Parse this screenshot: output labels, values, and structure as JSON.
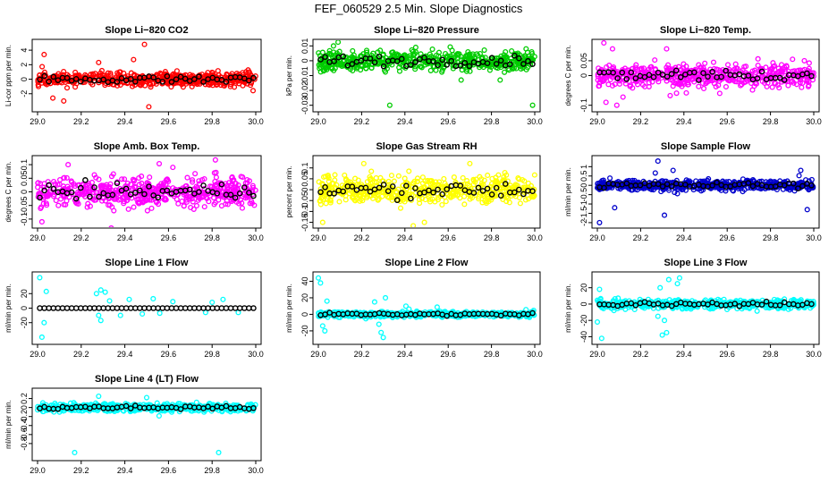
{
  "page_title": "FEF_060529  2.5 Min. Slope Diagnostics",
  "chart_data": [
    {
      "type": "scatter",
      "title": "Slope Li−820 CO2",
      "ylabel": "Li-cor ppm per min.",
      "xlim": [
        29.0,
        30.0
      ],
      "ylim": [
        -4,
        5
      ],
      "yticks": [
        -2,
        0,
        2,
        4
      ],
      "xticks": [
        29.0,
        29.2,
        29.4,
        29.6,
        29.8,
        30.0
      ],
      "color": "#ff0000",
      "spread": 0.9,
      "outliers": [
        [
          29.03,
          3.4
        ],
        [
          29.07,
          -2.6
        ],
        [
          29.12,
          -3.0
        ],
        [
          29.49,
          4.8
        ],
        [
          29.51,
          -3.8
        ],
        [
          29.44,
          2.7
        ],
        [
          29.28,
          2.3
        ]
      ]
    },
    {
      "type": "scatter",
      "title": "Slope Li−820 Pressure",
      "ylabel": "kPa per min.",
      "xlim": [
        29.0,
        30.0
      ],
      "ylim": [
        -0.032,
        0.012
      ],
      "yticks": [
        -0.03,
        -0.02,
        -0.01,
        0.0,
        0.01
      ],
      "xticks": [
        29.0,
        29.2,
        29.4,
        29.6,
        29.8,
        30.0
      ],
      "color": "#00cc00",
      "spread": 0.006,
      "outliers": [
        [
          29.33,
          -0.03
        ],
        [
          29.99,
          -0.03
        ],
        [
          29.45,
          0.009
        ],
        [
          29.96,
          0.008
        ],
        [
          29.07,
          0.01
        ],
        [
          29.66,
          -0.013
        ],
        [
          29.84,
          -0.013
        ]
      ]
    },
    {
      "type": "scatter",
      "title": "Slope Li−820 Temp.",
      "ylabel": "degrees C per min.",
      "xlim": [
        29.0,
        30.0
      ],
      "ylim": [
        -0.11,
        0.11
      ],
      "yticks": [
        -0.1,
        0.0,
        0.05
      ],
      "xticks": [
        29.0,
        29.2,
        29.4,
        29.6,
        29.8,
        30.0
      ],
      "color": "#ff00ff",
      "spread": 0.035,
      "outliers": [
        [
          29.03,
          0.11
        ],
        [
          29.04,
          -0.09
        ],
        [
          29.09,
          -0.1
        ],
        [
          29.32,
          0.09
        ],
        [
          29.07,
          0.09
        ]
      ]
    },
    {
      "type": "scatter",
      "title": "Slope Amb. Box Temp.",
      "ylabel": "degrees C per min.",
      "xlim": [
        29.0,
        30.0
      ],
      "ylim": [
        -0.12,
        0.12
      ],
      "yticks": [
        -0.1,
        -0.05,
        0.0,
        0.05,
        0.1
      ],
      "xticks": [
        29.0,
        29.2,
        29.4,
        29.6,
        29.8,
        30.0
      ],
      "color": "#ff00ff",
      "spread": 0.05,
      "outliers": [
        [
          29.02,
          -0.11
        ],
        [
          29.14,
          0.1
        ],
        [
          29.62,
          0.09
        ]
      ]
    },
    {
      "type": "scatter",
      "title": "Slope Gas Stream RH",
      "ylabel": "percent per min.",
      "xlim": [
        29.0,
        30.0
      ],
      "ylim": [
        -0.16,
        0.14
      ],
      "yticks": [
        -0.15,
        -0.1,
        -0.05,
        0.0,
        0.05,
        0.1
      ],
      "xticks": [
        29.0,
        29.2,
        29.4,
        29.6,
        29.8,
        30.0
      ],
      "color": "#ffff00",
      "spread": 0.06,
      "outliers": [
        [
          29.02,
          -0.15
        ],
        [
          29.49,
          -0.15
        ],
        [
          29.21,
          0.12
        ],
        [
          29.7,
          0.12
        ]
      ]
    },
    {
      "type": "scatter",
      "title": "Slope Sample Flow",
      "ylabel": "ml/min per min.",
      "xlim": [
        29.0,
        30.0
      ],
      "ylim": [
        -2.1,
        1.4
      ],
      "yticks": [
        -2,
        -1.5,
        -1,
        -0.5,
        0,
        0.5,
        1
      ],
      "xticks": [
        29.0,
        29.2,
        29.4,
        29.6,
        29.8,
        30.0
      ],
      "color": "#0000cc",
      "spread": 0.25,
      "outliers": [
        [
          29.01,
          -2.0
        ],
        [
          29.28,
          1.3
        ],
        [
          29.35,
          0.8
        ],
        [
          29.94,
          0.8
        ],
        [
          29.97,
          -1.3
        ],
        [
          29.08,
          -1.2
        ],
        [
          29.31,
          -1.6
        ]
      ]
    },
    {
      "type": "scatter",
      "title": "Slope Line 1 Flow",
      "ylabel": "ml/min per min.",
      "xlim": [
        29.0,
        30.0
      ],
      "ylim": [
        -45,
        45
      ],
      "yticks": [
        -20,
        0,
        20
      ],
      "xticks": [
        29.0,
        29.2,
        29.4,
        29.6,
        29.8,
        30.0
      ],
      "color": "#00ffff",
      "spread": 0,
      "outliers": [
        [
          29.01,
          42
        ],
        [
          29.02,
          -40
        ],
        [
          29.04,
          23
        ],
        [
          29.03,
          -20
        ],
        [
          29.27,
          20
        ],
        [
          29.29,
          25
        ],
        [
          29.31,
          22
        ],
        [
          29.28,
          -10
        ],
        [
          29.29,
          -17
        ],
        [
          29.38,
          -10
        ],
        [
          29.33,
          10
        ],
        [
          29.42,
          12
        ],
        [
          29.53,
          13
        ],
        [
          29.48,
          -8
        ],
        [
          29.62,
          9
        ],
        [
          29.56,
          -7
        ],
        [
          29.8,
          8
        ],
        [
          29.77,
          -6
        ],
        [
          29.85,
          12
        ],
        [
          29.92,
          -6
        ]
      ]
    },
    {
      "type": "scatter",
      "title": "Slope Line 2 Flow",
      "ylabel": "ml/min per min.",
      "xlim": [
        29.0,
        30.0
      ],
      "ylim": [
        -32,
        47
      ],
      "yticks": [
        -20,
        0,
        20,
        40
      ],
      "xticks": [
        29.0,
        29.2,
        29.4,
        29.6,
        29.8,
        30.0
      ],
      "color": "#00ffff",
      "spread": 3,
      "outliers": [
        [
          29.0,
          44
        ],
        [
          29.01,
          38
        ],
        [
          29.02,
          -14
        ],
        [
          29.03,
          -20
        ],
        [
          29.3,
          -28
        ],
        [
          29.29,
          -22
        ],
        [
          29.31,
          20
        ],
        [
          29.26,
          15
        ],
        [
          29.28,
          -12
        ],
        [
          29.04,
          16
        ]
      ]
    },
    {
      "type": "scatter",
      "title": "Slope Line 3 Flow",
      "ylabel": "ml/min per min.",
      "xlim": [
        29.0,
        30.0
      ],
      "ylim": [
        -45,
        35
      ],
      "yticks": [
        -40,
        -20,
        0,
        20
      ],
      "xticks": [
        29.0,
        29.2,
        29.4,
        29.6,
        29.8,
        30.0
      ],
      "color": "#00ffff",
      "spread": 5,
      "outliers": [
        [
          29.02,
          -42
        ],
        [
          29.0,
          -22
        ],
        [
          29.01,
          18
        ],
        [
          29.3,
          -38
        ],
        [
          29.32,
          -35
        ],
        [
          29.33,
          30
        ],
        [
          29.38,
          32
        ],
        [
          29.37,
          25
        ],
        [
          29.29,
          20
        ],
        [
          29.28,
          -15
        ],
        [
          29.31,
          -20
        ]
      ]
    },
    {
      "type": "scatter",
      "title": "Slope Line 4 (LT) Flow",
      "ylabel": "ml/min per min.",
      "xlim": [
        29.0,
        30.0
      ],
      "ylim": [
        -1.1,
        0.35
      ],
      "yticks": [
        -0.8,
        -0.6,
        -0.4,
        -0.2,
        0.0,
        0.2
      ],
      "xticks": [
        29.0,
        29.2,
        29.4,
        29.6,
        29.8,
        30.0
      ],
      "color": "#00ffff",
      "spread": 0.08,
      "outliers": [
        [
          29.17,
          -1.0
        ],
        [
          29.83,
          -1.0
        ],
        [
          29.28,
          0.25
        ],
        [
          29.5,
          0.22
        ]
      ]
    }
  ]
}
